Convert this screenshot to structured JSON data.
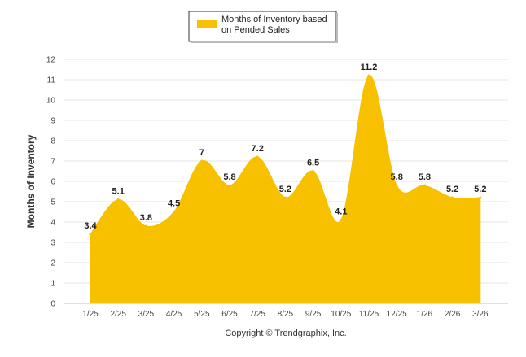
{
  "chart_data": {
    "type": "area",
    "title": "",
    "categories": [
      "1/25",
      "2/25",
      "3/25",
      "4/25",
      "5/25",
      "6/25",
      "7/25",
      "8/25",
      "9/25",
      "10/25",
      "11/25",
      "12/25",
      "1/26",
      "2/26",
      "3/26"
    ],
    "series": [
      {
        "name": "Months of Inventory based on Pended Sales",
        "values": [
          3.4,
          5.1,
          3.8,
          4.5,
          7,
          5.8,
          7.2,
          5.2,
          6.5,
          4.1,
          11.2,
          5.8,
          5.8,
          5.2,
          5.2
        ],
        "labels": [
          "3.4",
          "5.1",
          "3.8",
          "4.5",
          "7",
          "5.8",
          "7.2",
          "5.2",
          "6.5",
          "4.1",
          "11.2",
          "5.8",
          "5.8",
          "5.2",
          "5.2"
        ],
        "color": "#F7C100"
      }
    ],
    "legend": {
      "line1": "Months of Inventory based",
      "line2": "on Pended Sales",
      "position": "top-center"
    },
    "xlabel": "",
    "ylabel": "Months of Inventory",
    "ylim": [
      0,
      12
    ],
    "yticks": [
      "0",
      "1",
      "2",
      "3",
      "4",
      "5",
      "6",
      "7",
      "8",
      "9",
      "10",
      "11",
      "12"
    ],
    "grid": true
  },
  "footer": {
    "copyright": "Copyright © Trendgraphix, Inc."
  },
  "colors": {
    "area": "#F7C100",
    "grid": "#E6E6E6",
    "axis": "#C0C0C0"
  }
}
